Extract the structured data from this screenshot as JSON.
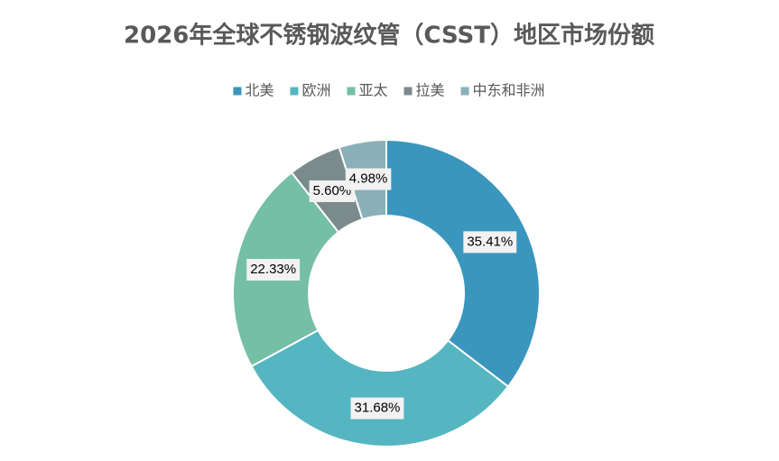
{
  "chart_data": {
    "type": "donut",
    "title": "2026年全球不锈钢波纹管（CSST）地区市场份额",
    "categories": [
      "北美",
      "欧洲",
      "亚太",
      "拉美",
      "中东和非洲"
    ],
    "values": [
      35.41,
      31.68,
      22.33,
      5.6,
      4.98
    ],
    "value_labels": [
      "35.41%",
      "31.68%",
      "22.33%",
      "5.60%",
      "4.98%"
    ],
    "colors": [
      "#3a96bd",
      "#55b6c2",
      "#74bfa6",
      "#7b8b8c",
      "#8ab0b8"
    ],
    "legend": "top"
  }
}
